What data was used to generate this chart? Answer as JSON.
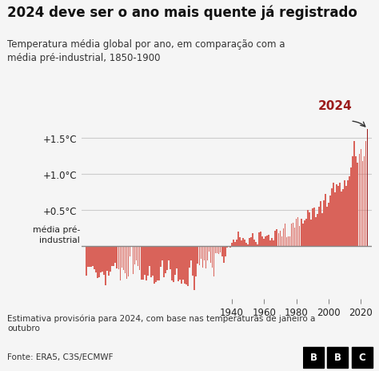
{
  "title": "2024 deve ser o ano mais quente já registrado",
  "subtitle": "Temperatura média global por ano, em comparação com a\nmédia pré-industrial, 1850-1900",
  "xlabel_ticks": [
    1940,
    1960,
    1980,
    2000,
    2020
  ],
  "footnote": "Estimativa provisória para 2024, com base nas temperaturas de janeiro a\noutubro",
  "source": "Fonte: ERA5, C3S/ECMWF",
  "annotation_2024": "2024",
  "bar_color_normal": "#d9635a",
  "bar_color_2024": "#9b1b1b",
  "background_color": "#f5f5f5",
  "years": [
    1850,
    1851,
    1852,
    1853,
    1854,
    1855,
    1856,
    1857,
    1858,
    1859,
    1860,
    1861,
    1862,
    1863,
    1864,
    1865,
    1866,
    1867,
    1868,
    1869,
    1870,
    1871,
    1872,
    1873,
    1874,
    1875,
    1876,
    1877,
    1878,
    1879,
    1880,
    1881,
    1882,
    1883,
    1884,
    1885,
    1886,
    1887,
    1888,
    1889,
    1890,
    1891,
    1892,
    1893,
    1894,
    1895,
    1896,
    1897,
    1898,
    1899,
    1900,
    1901,
    1902,
    1903,
    1904,
    1905,
    1906,
    1907,
    1908,
    1909,
    1910,
    1911,
    1912,
    1913,
    1914,
    1915,
    1916,
    1917,
    1918,
    1919,
    1920,
    1921,
    1922,
    1923,
    1924,
    1925,
    1926,
    1927,
    1928,
    1929,
    1930,
    1931,
    1932,
    1933,
    1934,
    1935,
    1936,
    1937,
    1938,
    1939,
    1940,
    1941,
    1942,
    1943,
    1944,
    1945,
    1946,
    1947,
    1948,
    1949,
    1950,
    1951,
    1952,
    1953,
    1954,
    1955,
    1956,
    1957,
    1958,
    1959,
    1960,
    1961,
    1962,
    1963,
    1964,
    1965,
    1966,
    1967,
    1968,
    1969,
    1970,
    1971,
    1972,
    1973,
    1974,
    1975,
    1976,
    1977,
    1978,
    1979,
    1980,
    1981,
    1982,
    1983,
    1984,
    1985,
    1986,
    1987,
    1988,
    1989,
    1990,
    1991,
    1992,
    1993,
    1994,
    1995,
    1996,
    1997,
    1998,
    1999,
    2000,
    2001,
    2002,
    2003,
    2004,
    2005,
    2006,
    2007,
    2008,
    2009,
    2010,
    2011,
    2012,
    2013,
    2014,
    2015,
    2016,
    2017,
    2018,
    2019,
    2020,
    2021,
    2022,
    2023,
    2024
  ],
  "anomalies": [
    -0.41,
    -0.28,
    -0.28,
    -0.28,
    -0.27,
    -0.32,
    -0.36,
    -0.44,
    -0.43,
    -0.36,
    -0.35,
    -0.39,
    -0.54,
    -0.34,
    -0.41,
    -0.35,
    -0.27,
    -0.27,
    -0.23,
    -0.31,
    -0.32,
    -0.47,
    -0.29,
    -0.33,
    -0.37,
    -0.45,
    -0.42,
    -0.14,
    -0.0,
    -0.38,
    -0.25,
    -0.19,
    -0.27,
    -0.33,
    -0.46,
    -0.46,
    -0.39,
    -0.47,
    -0.4,
    -0.27,
    -0.43,
    -0.4,
    -0.52,
    -0.49,
    -0.47,
    -0.47,
    -0.28,
    -0.2,
    -0.43,
    -0.37,
    -0.33,
    -0.19,
    -0.32,
    -0.47,
    -0.49,
    -0.39,
    -0.3,
    -0.48,
    -0.46,
    -0.51,
    -0.46,
    -0.52,
    -0.53,
    -0.55,
    -0.29,
    -0.2,
    -0.41,
    -0.6,
    -0.42,
    -0.24,
    -0.26,
    -0.17,
    -0.29,
    -0.19,
    -0.3,
    -0.19,
    -0.07,
    -0.23,
    -0.29,
    -0.42,
    -0.09,
    -0.1,
    -0.11,
    -0.08,
    -0.14,
    -0.23,
    -0.14,
    -0.02,
    -0.0,
    -0.02,
    0.05,
    0.09,
    0.06,
    0.09,
    0.2,
    0.13,
    0.08,
    0.12,
    0.09,
    0.05,
    0.03,
    0.12,
    0.13,
    0.18,
    0.09,
    0.06,
    0.03,
    0.19,
    0.2,
    0.14,
    0.1,
    0.14,
    0.15,
    0.16,
    0.08,
    0.11,
    0.08,
    0.22,
    0.24,
    0.18,
    0.22,
    0.14,
    0.25,
    0.31,
    0.13,
    0.14,
    0.14,
    0.31,
    0.32,
    0.26,
    0.38,
    0.4,
    0.28,
    0.38,
    0.31,
    0.36,
    0.38,
    0.5,
    0.47,
    0.37,
    0.52,
    0.53,
    0.4,
    0.45,
    0.55,
    0.62,
    0.46,
    0.64,
    0.72,
    0.55,
    0.6,
    0.7,
    0.8,
    0.88,
    0.74,
    0.86,
    0.83,
    0.88,
    0.76,
    0.79,
    0.91,
    0.83,
    0.91,
    0.97,
    1.09,
    1.24,
    1.45,
    1.24,
    1.16,
    1.28,
    1.34,
    1.18,
    1.24,
    1.45,
    1.62
  ]
}
